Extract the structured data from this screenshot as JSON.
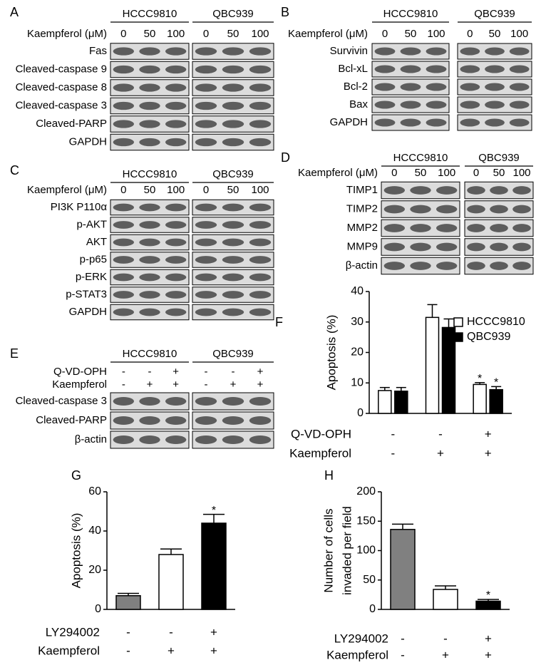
{
  "panels": [
    {
      "label": "A",
      "groups": [
        "HCCC9810",
        "QBC939"
      ],
      "treatments": [
        {
          "name": "Kaempferol (μM)",
          "lanes": [
            "0",
            "50",
            "100"
          ]
        }
      ],
      "proteins": [
        "Fas",
        "Cleaved-caspase 9",
        "Cleaved-caspase 8",
        "Cleaved-caspase 3",
        "Cleaved-PARP",
        "GAPDH"
      ]
    },
    {
      "label": "B",
      "groups": [
        "HCCC9810",
        "QBC939"
      ],
      "treatments": [
        {
          "name": "Kaempferol (μM)",
          "lanes": [
            "0",
            "50",
            "100"
          ]
        }
      ],
      "proteins": [
        "Survivin",
        "Bcl-xL",
        "Bcl-2",
        "Bax",
        "GAPDH"
      ]
    },
    {
      "label": "C",
      "groups": [
        "HCCC9810",
        "QBC939"
      ],
      "treatments": [
        {
          "name": "Kaempferol (μM)",
          "lanes": [
            "0",
            "50",
            "100"
          ]
        }
      ],
      "proteins": [
        "PI3K P110α",
        "p-AKT",
        "AKT",
        "p-p65",
        "p-ERK",
        "p-STAT3",
        "GAPDH"
      ]
    },
    {
      "label": "D",
      "groups": [
        "HCCC9810",
        "QBC939"
      ],
      "treatments": [
        {
          "name": "Kaempferol (μM)",
          "lanes": [
            "0",
            "50",
            "100"
          ]
        }
      ],
      "proteins": [
        "TIMP1",
        "TIMP2",
        "MMP2",
        "MMP9",
        "β-actin"
      ]
    },
    {
      "label": "E",
      "groups": [
        "HCCC9810",
        "QBC939"
      ],
      "treatments": [
        {
          "name": "Q-VD-OPH",
          "lanes": [
            "-",
            "-",
            "+"
          ]
        },
        {
          "name": "Kaempferol",
          "lanes": [
            "-",
            "+",
            "+"
          ]
        }
      ],
      "proteins": [
        "Cleaved-caspase 3",
        "Cleaved-PARP",
        "β-actin"
      ]
    }
  ],
  "chart_data": [
    {
      "type": "bar",
      "label": "F",
      "ylabel": [
        "Apoptosis (%)"
      ],
      "categories": [
        null,
        null,
        null
      ],
      "series": [
        {
          "name": "HCCC9810",
          "color": "#ffffff",
          "values": [
            7.5,
            31.5,
            9.5
          ],
          "errors": [
            1,
            4.2,
            0.6
          ],
          "significance": [
            null,
            null,
            "*"
          ]
        },
        {
          "name": "QBC939",
          "color": "#000000",
          "values": [
            7.3,
            28.2,
            7.8
          ],
          "errors": [
            1.2,
            2.8,
            1
          ],
          "significance": [
            null,
            null,
            "*"
          ]
        }
      ],
      "conditions": [
        {
          "name": "Q-VD-OPH",
          "values": [
            "-",
            "-",
            "+"
          ]
        },
        {
          "name": "Kaempferol",
          "values": [
            "-",
            "+",
            "+"
          ]
        }
      ],
      "ylim": [
        0,
        40
      ],
      "yticks": [
        0,
        10,
        20,
        30,
        40
      ],
      "legend": "upper-right"
    },
    {
      "type": "bar",
      "label": "G",
      "ylabel": [
        "Apoptosis (%)"
      ],
      "categories": [
        null,
        null,
        null
      ],
      "series": [
        {
          "colors": [
            "#808080",
            "#ffffff",
            "#000000"
          ],
          "values": [
            7,
            28,
            44
          ],
          "errors": [
            1.2,
            2.8,
            4.5
          ],
          "significance": [
            null,
            null,
            "*"
          ]
        }
      ],
      "conditions": [
        {
          "name": "LY294002",
          "values": [
            "-",
            "-",
            "+"
          ]
        },
        {
          "name": "Kaempferol",
          "values": [
            "-",
            "+",
            "+"
          ]
        }
      ],
      "ylim": [
        0,
        60
      ],
      "yticks": [
        0,
        20,
        40,
        60
      ]
    },
    {
      "type": "bar",
      "label": "H",
      "ylabel": [
        "Number of cells",
        "invaded per field"
      ],
      "categories": [
        null,
        null,
        null
      ],
      "series": [
        {
          "colors": [
            "#808080",
            "#ffffff",
            "#000000"
          ],
          "values": [
            136,
            34,
            14
          ],
          "errors": [
            9,
            6,
            3
          ],
          "significance": [
            null,
            null,
            "*"
          ]
        }
      ],
      "conditions": [
        {
          "name": "LY294002",
          "values": [
            "-",
            "-",
            "+"
          ]
        },
        {
          "name": "Kaempferol",
          "values": [
            "-",
            "+",
            "+"
          ]
        }
      ],
      "ylim": [
        0,
        200
      ],
      "yticks": [
        0,
        50,
        100,
        150,
        200
      ]
    }
  ]
}
